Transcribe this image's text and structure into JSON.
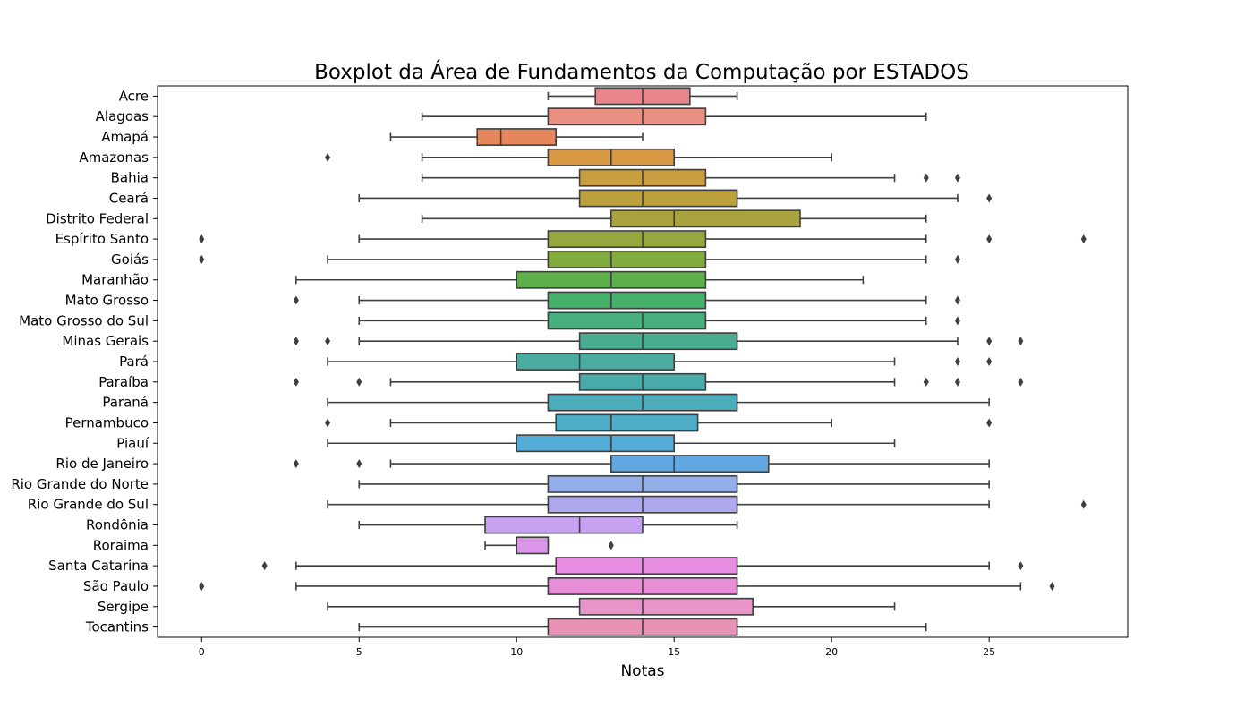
{
  "chart_data": {
    "type": "boxplot",
    "orientation": "horizontal",
    "title": "Boxplot da Área de Fundamentos da Computação por ESTADOS",
    "xlabel": "Notas",
    "ylabel": "",
    "xlim": [
      -1.4,
      29.4
    ],
    "xticks": [
      0,
      5,
      10,
      15,
      20,
      25
    ],
    "grid": false,
    "series": [
      {
        "name": "Acre",
        "color": "#e8858d",
        "whislo": 11,
        "q1": 12.5,
        "med": 14,
        "q3": 15.5,
        "whishi": 17,
        "fliers": []
      },
      {
        "name": "Alagoas",
        "color": "#ea9083",
        "whislo": 7,
        "q1": 11,
        "med": 14,
        "q3": 16,
        "whishi": 23,
        "fliers": []
      },
      {
        "name": "Amapá",
        "color": "#e6865b",
        "whislo": 6,
        "q1": 8.75,
        "med": 9.5,
        "q3": 11.25,
        "whishi": 14,
        "fliers": []
      },
      {
        "name": "Amazonas",
        "color": "#d99843",
        "whislo": 7,
        "q1": 11,
        "med": 13,
        "q3": 15,
        "whishi": 20,
        "fliers": [
          4
        ]
      },
      {
        "name": "Bahia",
        "color": "#c99e40",
        "whislo": 7,
        "q1": 12,
        "med": 14,
        "q3": 16,
        "whishi": 22,
        "fliers": [
          23,
          24
        ]
      },
      {
        "name": "Ceará",
        "color": "#bca13e",
        "whislo": 5,
        "q1": 12,
        "med": 14,
        "q3": 17,
        "whishi": 24,
        "fliers": [
          25
        ]
      },
      {
        "name": "Distrito Federal",
        "color": "#a8a23f",
        "whislo": 7,
        "q1": 13,
        "med": 15,
        "q3": 19,
        "whishi": 23,
        "fliers": []
      },
      {
        "name": "Espírito Santo",
        "color": "#98a63e",
        "whislo": 5,
        "q1": 11,
        "med": 14,
        "q3": 16,
        "whishi": 23,
        "fliers": [
          0,
          25,
          28
        ]
      },
      {
        "name": "Goiás",
        "color": "#83ac3f",
        "whislo": 4,
        "q1": 11,
        "med": 13,
        "q3": 16,
        "whishi": 23,
        "fliers": [
          0,
          24
        ]
      },
      {
        "name": "Maranhão",
        "color": "#5eb04a",
        "whislo": 3,
        "q1": 10,
        "med": 13,
        "q3": 16,
        "whishi": 21,
        "fliers": []
      },
      {
        "name": "Mato Grosso",
        "color": "#45b06a",
        "whislo": 5,
        "q1": 11,
        "med": 13,
        "q3": 16,
        "whishi": 23,
        "fliers": [
          3,
          24
        ]
      },
      {
        "name": "Mato Grosso do Sul",
        "color": "#48b07f",
        "whislo": 5,
        "q1": 11,
        "med": 14,
        "q3": 16,
        "whishi": 23,
        "fliers": [
          24
        ]
      },
      {
        "name": "Minas Gerais",
        "color": "#49ae91",
        "whislo": 5,
        "q1": 12,
        "med": 14,
        "q3": 17,
        "whishi": 24,
        "fliers": [
          3,
          4,
          25,
          26
        ]
      },
      {
        "name": "Pará",
        "color": "#4aac9f",
        "whislo": 4,
        "q1": 10,
        "med": 12,
        "q3": 15,
        "whishi": 22,
        "fliers": [
          24,
          25
        ]
      },
      {
        "name": "Paraíba",
        "color": "#4aabab",
        "whislo": 6,
        "q1": 12,
        "med": 14,
        "q3": 16,
        "whishi": 22,
        "fliers": [
          3,
          5,
          23,
          24,
          26
        ]
      },
      {
        "name": "Paraná",
        "color": "#4cacb9",
        "whislo": 4,
        "q1": 11,
        "med": 14,
        "q3": 17,
        "whishi": 25,
        "fliers": []
      },
      {
        "name": "Pernambuco",
        "color": "#4eaec7",
        "whislo": 6,
        "q1": 11.25,
        "med": 13,
        "q3": 15.75,
        "whishi": 20,
        "fliers": [
          4,
          25
        ]
      },
      {
        "name": "Piauí",
        "color": "#52acd5",
        "whislo": 4,
        "q1": 10,
        "med": 13,
        "q3": 15,
        "whishi": 22,
        "fliers": []
      },
      {
        "name": "Rio de Janeiro",
        "color": "#61a8e3",
        "whislo": 6,
        "q1": 13,
        "med": 15,
        "q3": 18,
        "whishi": 25,
        "fliers": [
          3,
          5
        ]
      },
      {
        "name": "Rio Grande do Norte",
        "color": "#94aeea",
        "whislo": 5,
        "q1": 11,
        "med": 14,
        "q3": 17,
        "whishi": 25,
        "fliers": []
      },
      {
        "name": "Rio Grande do Sul",
        "color": "#aea8ef",
        "whislo": 4,
        "q1": 11,
        "med": 14,
        "q3": 17,
        "whishi": 25,
        "fliers": [
          28
        ]
      },
      {
        "name": "Rondônia",
        "color": "#c7a1f1",
        "whislo": 5,
        "q1": 9,
        "med": 12,
        "q3": 14,
        "whishi": 17,
        "fliers": []
      },
      {
        "name": "Roraima",
        "color": "#da95e8",
        "whislo": 9,
        "q1": 10,
        "med": 10,
        "q3": 11,
        "whishi": 11,
        "fliers": [
          13
        ]
      },
      {
        "name": "Santa Catarina",
        "color": "#e68de3",
        "whislo": 3,
        "q1": 11.25,
        "med": 14,
        "q3": 17,
        "whishi": 25,
        "fliers": [
          2,
          26
        ]
      },
      {
        "name": "São Paulo",
        "color": "#e88ed6",
        "whislo": 3,
        "q1": 11,
        "med": 14,
        "q3": 17,
        "whishi": 26,
        "fliers": [
          0,
          27
        ]
      },
      {
        "name": "Sergipe",
        "color": "#e893c9",
        "whislo": 4,
        "q1": 12,
        "med": 14,
        "q3": 17.5,
        "whishi": 22,
        "fliers": []
      },
      {
        "name": "Tocantins",
        "color": "#e893b5",
        "whislo": 5,
        "q1": 11,
        "med": 14,
        "q3": 17,
        "whishi": 23,
        "fliers": []
      }
    ]
  }
}
